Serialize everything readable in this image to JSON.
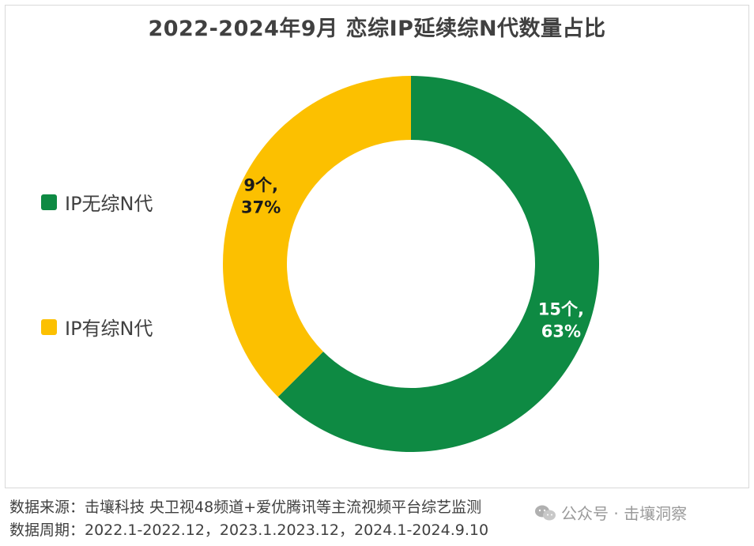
{
  "chart_data": {
    "type": "pie",
    "donut": true,
    "title": "2022-2024年9月 恋综IP延续综N代数量占比",
    "legend_position": "left",
    "slices": [
      {
        "name": "IP无综N代",
        "value": 15,
        "percent": "63%",
        "label": "15个,\n63%",
        "color": "#0e8a43"
      },
      {
        "name": "IP有综N代",
        "value": 9,
        "percent": "37%",
        "label": "9个,\n37%",
        "color": "#fcc000"
      }
    ]
  },
  "footer": {
    "source": "数据来源：击壤科技  央卫视48频道+爱优腾讯等主流视频平台综艺监测",
    "period": "数据周期：2022.1-2022.12，2023.1.2023.12，2024.1-2024.9.10"
  },
  "watermark": {
    "icon": "wechat-icon",
    "text": "公众号 · 击壤洞察"
  }
}
